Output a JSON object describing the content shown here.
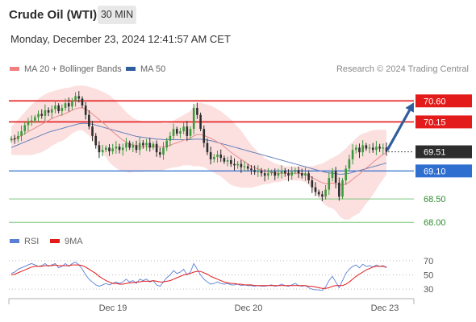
{
  "header": {
    "title": "Crude Oil (WTI)",
    "timeframe": "30 MIN",
    "timestamp": "Monday, December 23, 2024 12:41:57 AM CET"
  },
  "legend": {
    "items": [
      {
        "label": "MA 20 + Bollinger Bands",
        "color": "#f08080"
      },
      {
        "label": "MA 50",
        "color": "#2f5e9e"
      }
    ],
    "attribution": "Research © 2024 Trading Central"
  },
  "rsi_legend": {
    "items": [
      {
        "label": "RSI",
        "color": "#5b7fd6"
      },
      {
        "label": "9MA",
        "color": "#e31b1b"
      }
    ]
  },
  "colors": {
    "resistance": "#e31b1b",
    "support_blue": "#2f6fd0",
    "support_green": "#7cc47c",
    "bull_candle": "#3a9a3a",
    "bear_candle": "#2d2d2d",
    "band_fill": "#fbd5d5",
    "ma20": "#e88a8a",
    "ma50": "#6680b8",
    "arrow": "#2f5e9e",
    "current_price_bg": "#2d2d2d"
  },
  "chart_data": [
    {
      "type": "candlestick",
      "title": "Crude Oil (WTI)",
      "x_ticks": [
        "Dec 19",
        "Dec 20",
        "Dec 23"
      ],
      "ylim": [
        67.9,
        70.95
      ],
      "levels": [
        {
          "value": 70.6,
          "label": "70.60",
          "kind": "resistance"
        },
        {
          "value": 70.15,
          "label": "70.15",
          "kind": "resistance"
        },
        {
          "value": 69.51,
          "label": "69.51",
          "kind": "current"
        },
        {
          "value": 69.1,
          "label": "69.10",
          "kind": "support_blue"
        },
        {
          "value": 68.5,
          "label": "68.50",
          "kind": "support_green"
        },
        {
          "value": 68.0,
          "label": "68.00",
          "kind": "support_green"
        }
      ],
      "current_price": 69.51,
      "forecast_arrow": {
        "from": 69.51,
        "to": 70.6
      },
      "close": [
        69.8,
        69.78,
        69.85,
        69.95,
        70.08,
        70.15,
        70.18,
        70.25,
        70.32,
        70.28,
        70.4,
        70.35,
        70.42,
        70.5,
        70.38,
        70.45,
        70.55,
        70.48,
        70.6,
        70.7,
        70.65,
        70.5,
        70.3,
        70.05,
        69.85,
        69.65,
        69.5,
        69.55,
        69.6,
        69.52,
        69.58,
        69.62,
        69.55,
        69.6,
        69.7,
        69.6,
        69.65,
        69.55,
        69.7,
        69.65,
        69.7,
        69.6,
        69.68,
        69.5,
        69.45,
        69.6,
        69.75,
        69.85,
        70.0,
        69.9,
        69.95,
        70.05,
        69.85,
        70.0,
        70.45,
        70.3,
        70.0,
        69.7,
        69.5,
        69.35,
        69.4,
        69.45,
        69.38,
        69.3,
        69.33,
        69.25,
        69.22,
        69.25,
        69.18,
        69.2,
        69.15,
        69.12,
        69.08,
        69.1,
        69.05,
        69.0,
        69.05,
        69.08,
        69.0,
        69.05,
        69.1,
        69.05,
        69.0,
        69.08,
        69.12,
        69.05,
        69.0,
        69.05,
        68.9,
        68.75,
        68.65,
        68.6,
        68.55,
        68.7,
        68.95,
        69.1,
        68.85,
        68.55,
        68.9,
        69.15,
        69.35,
        69.55,
        69.6,
        69.5,
        69.65,
        69.58,
        69.6,
        69.55,
        69.62,
        69.58,
        69.6,
        69.51
      ],
      "ma20": [
        69.75,
        69.78,
        69.82,
        69.86,
        69.9,
        69.94,
        69.98,
        70.02,
        70.06,
        70.1,
        70.14,
        70.18,
        70.22,
        70.25,
        70.28,
        70.3,
        70.33,
        70.36,
        70.4,
        70.43,
        70.45,
        70.45,
        70.42,
        70.38,
        70.32,
        70.26,
        70.2,
        70.14,
        70.08,
        70.0,
        69.94,
        69.88,
        69.82,
        69.76,
        69.72,
        69.68,
        69.66,
        69.64,
        69.63,
        69.62,
        69.62,
        69.62,
        69.63,
        69.63,
        69.62,
        69.62,
        69.63,
        69.65,
        69.68,
        69.7,
        69.73,
        69.76,
        69.78,
        69.8,
        69.85,
        69.88,
        69.88,
        69.86,
        69.83,
        69.8,
        69.76,
        69.72,
        69.68,
        69.62,
        69.56,
        69.5,
        69.45,
        69.4,
        69.35,
        69.3,
        69.25,
        69.2,
        69.17,
        69.14,
        69.12,
        69.1,
        69.08,
        69.07,
        69.06,
        69.05,
        69.05,
        69.05,
        69.05,
        69.05,
        69.05,
        69.05,
        69.04,
        69.03,
        69.0,
        68.96,
        68.92,
        68.88,
        68.85,
        68.83,
        68.83,
        68.84,
        68.83,
        68.8,
        68.8,
        68.82,
        68.86,
        68.92,
        68.98,
        69.03,
        69.1,
        69.16,
        69.22,
        69.28,
        69.34,
        69.4,
        69.45,
        69.5
      ],
      "ma50": [
        69.6,
        69.63,
        69.66,
        69.69,
        69.72,
        69.75,
        69.78,
        69.81,
        69.84,
        69.87,
        69.9,
        69.93,
        69.95,
        69.97,
        69.99,
        70.01,
        70.03,
        70.05,
        70.07,
        70.09,
        70.11,
        70.12,
        70.12,
        70.11,
        70.1,
        70.08,
        70.06,
        70.04,
        70.02,
        70.0,
        69.98,
        69.96,
        69.94,
        69.92,
        69.9,
        69.88,
        69.86,
        69.84,
        69.83,
        69.82,
        69.81,
        69.8,
        69.79,
        69.78,
        69.78,
        69.77,
        69.77,
        69.77,
        69.77,
        69.77,
        69.77,
        69.77,
        69.77,
        69.77,
        69.78,
        69.78,
        69.78,
        69.77,
        69.76,
        69.75,
        69.73,
        69.71,
        69.69,
        69.67,
        69.65,
        69.63,
        69.61,
        69.59,
        69.57,
        69.55,
        69.53,
        69.51,
        69.49,
        69.47,
        69.45,
        69.43,
        69.41,
        69.39,
        69.37,
        69.35,
        69.33,
        69.31,
        69.29,
        69.27,
        69.25,
        69.23,
        69.21,
        69.19,
        69.17,
        69.15,
        69.13,
        69.11,
        69.09,
        69.07,
        69.06,
        69.05,
        69.04,
        69.03,
        69.03,
        69.04,
        69.05,
        69.07,
        69.09,
        69.11,
        69.13,
        69.15,
        69.17,
        69.19,
        69.21,
        69.23,
        69.25,
        69.27
      ],
      "bb_upper": [
        70.05,
        70.12,
        70.2,
        70.28,
        70.36,
        70.44,
        70.52,
        70.58,
        70.64,
        70.7,
        70.74,
        70.78,
        70.8,
        70.82,
        70.84,
        70.86,
        70.88,
        70.88,
        70.9,
        70.92,
        70.93,
        70.93,
        70.92,
        70.9,
        70.88,
        70.86,
        70.83,
        70.8,
        70.76,
        70.72,
        70.66,
        70.6,
        70.52,
        70.44,
        70.36,
        70.3,
        70.24,
        70.2,
        70.18,
        70.16,
        70.15,
        70.15,
        70.15,
        70.15,
        70.14,
        70.12,
        70.12,
        70.14,
        70.18,
        70.22,
        70.26,
        70.3,
        70.34,
        70.38,
        70.5,
        70.56,
        70.56,
        70.54,
        70.52,
        70.5,
        70.46,
        70.42,
        70.38,
        70.32,
        70.26,
        70.2,
        70.12,
        70.04,
        69.96,
        69.86,
        69.76,
        69.66,
        69.58,
        69.5,
        69.44,
        69.38,
        69.34,
        69.3,
        69.26,
        69.24,
        69.22,
        69.2,
        69.2,
        69.2,
        69.2,
        69.2,
        69.2,
        69.2,
        69.2,
        69.2,
        69.22,
        69.24,
        69.26,
        69.3,
        69.34,
        69.38,
        69.42,
        69.46,
        69.52,
        69.58,
        69.66,
        69.72,
        69.8,
        69.86,
        69.9,
        69.92,
        69.95,
        69.97,
        69.98,
        69.98,
        69.98,
        69.98
      ],
      "bb_lower": [
        69.45,
        69.44,
        69.44,
        69.44,
        69.44,
        69.44,
        69.44,
        69.46,
        69.48,
        69.5,
        69.54,
        69.58,
        69.64,
        69.68,
        69.72,
        69.74,
        69.78,
        69.84,
        69.9,
        69.94,
        69.97,
        69.97,
        69.92,
        69.86,
        69.76,
        69.66,
        69.57,
        69.48,
        69.4,
        69.28,
        69.22,
        69.16,
        69.12,
        69.08,
        69.08,
        69.06,
        69.08,
        69.08,
        69.08,
        69.08,
        69.09,
        69.09,
        69.11,
        69.11,
        69.1,
        69.12,
        69.14,
        69.16,
        69.18,
        69.18,
        69.2,
        69.22,
        69.22,
        69.22,
        69.2,
        69.2,
        69.2,
        69.18,
        69.14,
        69.1,
        69.06,
        69.02,
        68.98,
        68.92,
        68.86,
        68.8,
        68.78,
        68.76,
        68.74,
        68.74,
        68.74,
        68.74,
        68.76,
        68.78,
        68.8,
        68.82,
        68.82,
        68.84,
        68.86,
        68.86,
        68.88,
        68.9,
        68.9,
        68.9,
        68.9,
        68.9,
        68.88,
        68.86,
        68.8,
        68.72,
        68.62,
        68.52,
        68.44,
        68.36,
        68.32,
        68.3,
        68.24,
        68.14,
        68.08,
        68.06,
        68.06,
        68.12,
        68.16,
        68.2,
        68.3,
        68.4,
        68.49,
        68.59,
        68.7,
        68.82,
        68.92,
        69.02
      ]
    },
    {
      "type": "line",
      "title": "RSI",
      "ylim": [
        20,
        80
      ],
      "y_ticks": [
        30,
        50,
        70
      ],
      "series": [
        {
          "name": "RSI",
          "values": [
            52,
            54,
            58,
            60,
            62,
            64,
            66,
            64,
            62,
            63,
            66,
            62,
            64,
            66,
            60,
            62,
            66,
            62,
            66,
            68,
            64,
            58,
            50,
            44,
            40,
            36,
            34,
            36,
            38,
            36,
            38,
            40,
            38,
            40,
            44,
            40,
            42,
            38,
            44,
            42,
            44,
            40,
            42,
            36,
            34,
            40,
            46,
            50,
            56,
            52,
            54,
            58,
            50,
            54,
            66,
            58,
            50,
            44,
            40,
            37,
            38,
            40,
            38,
            37,
            38,
            36,
            36,
            37,
            35,
            36,
            35,
            35,
            34,
            35,
            34,
            34,
            35,
            36,
            34,
            35,
            37,
            35,
            34,
            36,
            38,
            35,
            34,
            35,
            32,
            30,
            29,
            29,
            28,
            33,
            42,
            48,
            40,
            32,
            42,
            52,
            58,
            62,
            64,
            60,
            65,
            62,
            63,
            61,
            64,
            62,
            63,
            60
          ]
        },
        {
          "name": "9MA",
          "values": [
            50,
            51,
            53,
            55,
            57,
            59,
            61,
            62,
            62,
            62,
            63,
            63,
            63,
            64,
            63,
            63,
            63,
            63,
            64,
            64,
            64,
            63,
            61,
            58,
            55,
            52,
            48,
            45,
            42,
            40,
            38,
            38,
            37,
            37,
            38,
            39,
            39,
            40,
            40,
            41,
            41,
            41,
            42,
            41,
            40,
            40,
            41,
            42,
            44,
            46,
            48,
            50,
            51,
            52,
            54,
            55,
            55,
            53,
            51,
            48,
            46,
            44,
            42,
            40,
            39,
            38,
            38,
            37,
            37,
            36,
            36,
            36,
            35,
            35,
            35,
            35,
            35,
            35,
            35,
            35,
            35,
            35,
            35,
            35,
            35,
            35,
            35,
            35,
            34,
            34,
            33,
            32,
            31,
            31,
            32,
            34,
            35,
            35,
            35,
            37,
            40,
            44,
            48,
            51,
            54,
            57,
            59,
            61,
            62,
            62,
            62,
            61
          ]
        }
      ]
    }
  ]
}
